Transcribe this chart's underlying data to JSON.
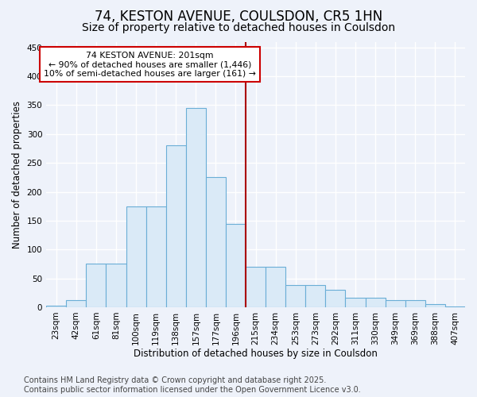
{
  "title": "74, KESTON AVENUE, COULSDON, CR5 1HN",
  "subtitle": "Size of property relative to detached houses in Coulsdon",
  "xlabel": "Distribution of detached houses by size in Coulsdon",
  "ylabel": "Number of detached properties",
  "footer_line1": "Contains HM Land Registry data © Crown copyright and database right 2025.",
  "footer_line2": "Contains public sector information licensed under the Open Government Licence v3.0.",
  "annotation_title": "74 KESTON AVENUE: 201sqm",
  "annotation_line2": "← 90% of detached houses are smaller (1,446)",
  "annotation_line3": "10% of semi-detached houses are larger (161) →",
  "bar_color": "#daeaf7",
  "bar_edge_color": "#6aaed6",
  "vline_color": "#aa0000",
  "vline_x_index": 9.5,
  "annotation_box_color": "#cc0000",
  "categories": [
    "23sqm",
    "42sqm",
    "61sqm",
    "81sqm",
    "100sqm",
    "119sqm",
    "138sqm",
    "157sqm",
    "177sqm",
    "196sqm",
    "215sqm",
    "234sqm",
    "253sqm",
    "273sqm",
    "292sqm",
    "311sqm",
    "330sqm",
    "349sqm",
    "369sqm",
    "388sqm",
    "407sqm"
  ],
  "values": [
    3,
    12,
    75,
    75,
    175,
    175,
    280,
    345,
    225,
    145,
    70,
    70,
    38,
    38,
    30,
    16,
    16,
    12,
    12,
    6,
    2
  ],
  "ylim": [
    0,
    460
  ],
  "yticks": [
    0,
    50,
    100,
    150,
    200,
    250,
    300,
    350,
    400,
    450
  ],
  "background_color": "#eef2fa",
  "plot_background": "#eef2fa",
  "grid_color": "#ffffff",
  "title_fontsize": 12,
  "subtitle_fontsize": 10,
  "axis_label_fontsize": 8.5,
  "tick_fontsize": 7.5,
  "footer_fontsize": 7
}
